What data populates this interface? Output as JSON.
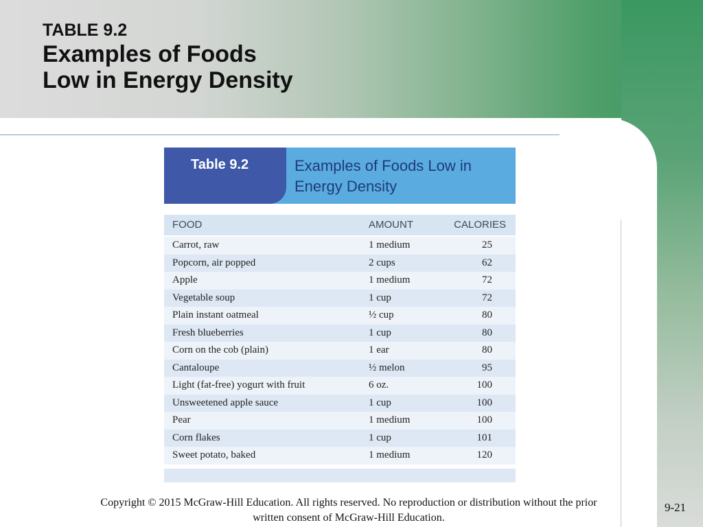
{
  "header": {
    "label": "TABLE 9.2",
    "title_line1": "Examples of Foods",
    "title_line2": "Low in Energy Density"
  },
  "table": {
    "tab_label": "Table 9.2",
    "caption_line1": "Examples of Foods Low in",
    "caption_line2": "Energy Density",
    "columns": [
      "FOOD",
      "AMOUNT",
      "CALORIES"
    ],
    "rows": [
      {
        "food": "Carrot, raw",
        "amount": "1 medium",
        "calories": "25"
      },
      {
        "food": "Popcorn, air popped",
        "amount": "2 cups",
        "calories": "62"
      },
      {
        "food": "Apple",
        "amount": "1 medium",
        "calories": "72"
      },
      {
        "food": "Vegetable soup",
        "amount": "1 cup",
        "calories": "72"
      },
      {
        "food": "Plain instant oatmeal",
        "amount": "½ cup",
        "calories": "80"
      },
      {
        "food": "Fresh blueberries",
        "amount": "1 cup",
        "calories": "80"
      },
      {
        "food": "Corn on the cob (plain)",
        "amount": "1 ear",
        "calories": "80"
      },
      {
        "food": "Cantaloupe",
        "amount": "½ melon",
        "calories": "95"
      },
      {
        "food": "Light (fat-free) yogurt with fruit",
        "amount": "6 oz.",
        "calories": "100"
      },
      {
        "food": "Unsweetened apple sauce",
        "amount": "1 cup",
        "calories": "100"
      },
      {
        "food": "Pear",
        "amount": "1 medium",
        "calories": "100"
      },
      {
        "food": "Corn flakes",
        "amount": "1 cup",
        "calories": "101"
      },
      {
        "food": "Sweet potato, baked",
        "amount": "1 medium",
        "calories": "120"
      }
    ]
  },
  "footer": {
    "copyright_line1": "Copyright © 2015 McGraw-Hill Education. All rights reserved. No reproduction or distribution without the prior",
    "copyright_line2": "written consent of McGraw-Hill Education.",
    "page_number": "9-21"
  },
  "colors": {
    "accent_green": "#3a9660",
    "table_tab": "#3f58a8",
    "table_header": "#5aace0",
    "row_band": "#dde8f4"
  }
}
